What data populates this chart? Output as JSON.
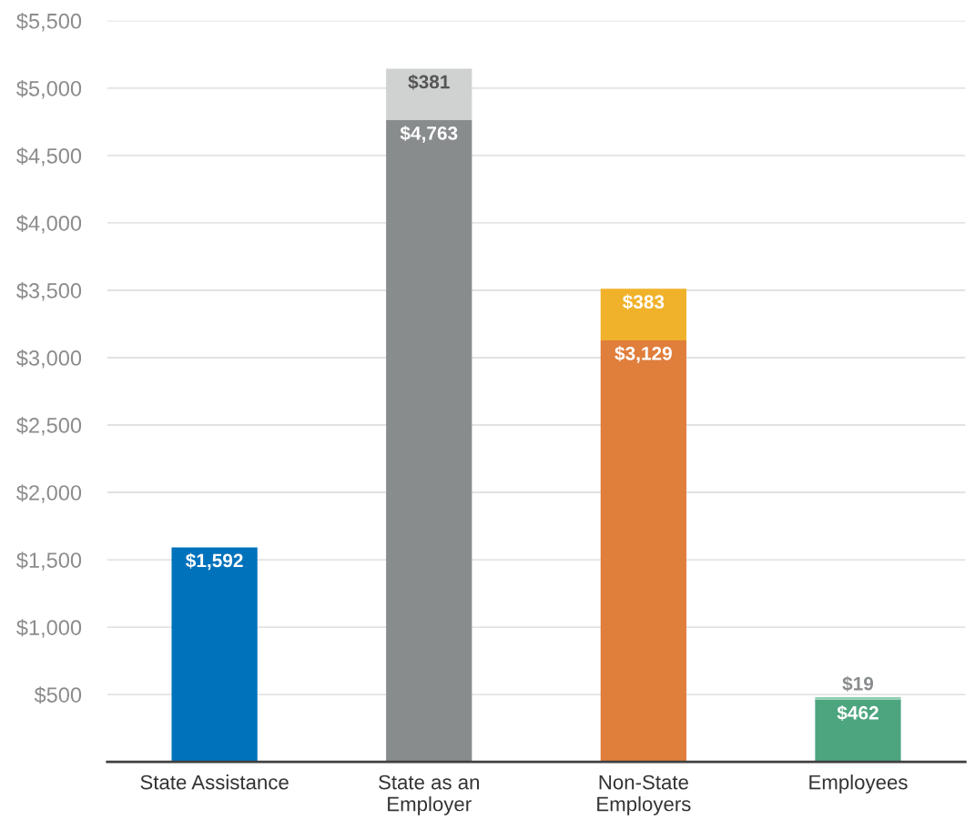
{
  "chart_data": {
    "type": "bar",
    "stacked": true,
    "categories": [
      "State Assistance",
      "State as an\nEmployer",
      "Non-State\nEmployers",
      "Employees"
    ],
    "series": [
      {
        "values": [
          1592,
          4763,
          3129,
          462
        ],
        "colors": [
          "#0072bb",
          "#898c8d",
          "#e07e3c",
          "#4da57f"
        ],
        "value_labels": [
          "$1,592",
          "$4,763",
          "$3,129",
          "$462"
        ]
      },
      {
        "values": [
          null,
          381,
          383,
          19
        ],
        "colors": [
          null,
          "#d0d1d1",
          "#f0b22a",
          "#8fcfb0"
        ],
        "value_labels": [
          null,
          "$381",
          "$383",
          "$19"
        ]
      }
    ],
    "ylim": [
      0,
      5500
    ],
    "yticks": [
      {
        "value": 500,
        "label": "$500"
      },
      {
        "value": 1000,
        "label": "$1,000"
      },
      {
        "value": 1500,
        "label": "$1,500"
      },
      {
        "value": 2000,
        "label": "$2,000"
      },
      {
        "value": 2500,
        "label": "$2,500"
      },
      {
        "value": 3000,
        "label": "$3,000"
      },
      {
        "value": 3500,
        "label": "$3,500"
      },
      {
        "value": 4000,
        "label": "$4,000"
      },
      {
        "value": 4500,
        "label": "$4,500"
      },
      {
        "value": 5000,
        "label": "$5,000"
      },
      {
        "value": 5500,
        "label": "$5,500"
      }
    ],
    "grid": "y"
  }
}
